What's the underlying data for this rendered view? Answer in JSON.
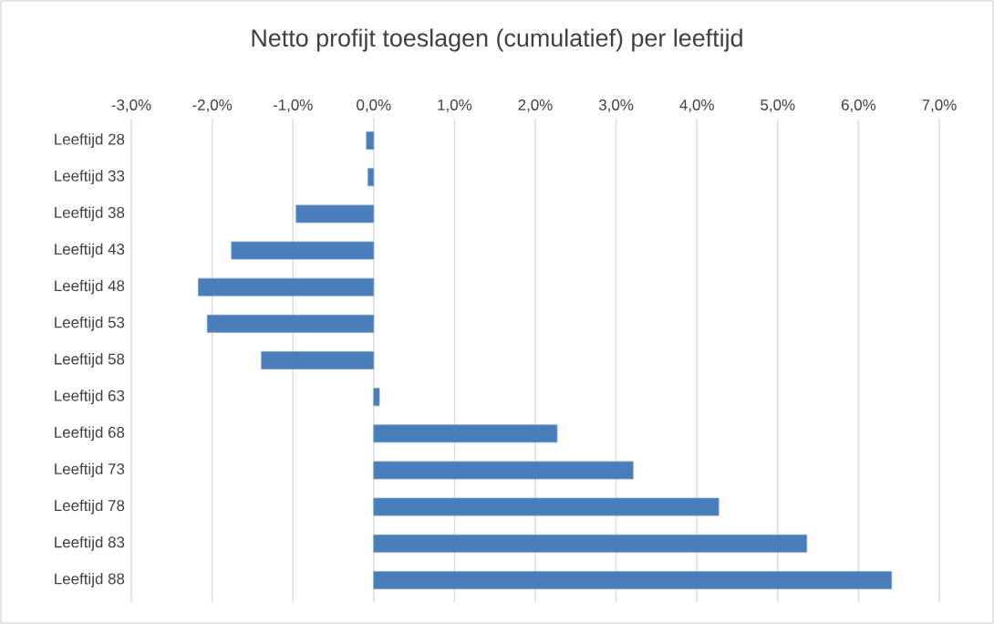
{
  "chart_data": {
    "type": "bar",
    "orientation": "horizontal",
    "title": "Netto profijt toeslagen (cumulatief) per leeftijd",
    "categories": [
      "Leeftijd 28",
      "Leeftijd 33",
      "Leeftijd 38",
      "Leeftijd 43",
      "Leeftijd 48",
      "Leeftijd 53",
      "Leeftijd 58",
      "Leeftijd 63",
      "Leeftijd 68",
      "Leeftijd 73",
      "Leeftijd 78",
      "Leeftijd 83",
      "Leeftijd 88"
    ],
    "values": [
      -0.09,
      -0.07,
      -0.96,
      -1.76,
      -2.17,
      -2.06,
      -1.39,
      0.07,
      2.27,
      3.21,
      4.27,
      5.36,
      6.41
    ],
    "color": "#4a7ebb",
    "xlim": [
      -3,
      7
    ],
    "xticks": [
      {
        "value": -3,
        "label": "-3,0%"
      },
      {
        "value": -2,
        "label": "-2,0%"
      },
      {
        "value": -1,
        "label": "-1,0%"
      },
      {
        "value": 0,
        "label": "0,0%"
      },
      {
        "value": 1,
        "label": "1,0%"
      },
      {
        "value": 2,
        "label": "2,0%"
      },
      {
        "value": 3,
        "label": "3,0%"
      },
      {
        "value": 4,
        "label": "4,0%"
      },
      {
        "value": 5,
        "label": "5,0%"
      },
      {
        "value": 6,
        "label": "6,0%"
      },
      {
        "value": 7,
        "label": "7,0%"
      }
    ],
    "grid": "x"
  }
}
